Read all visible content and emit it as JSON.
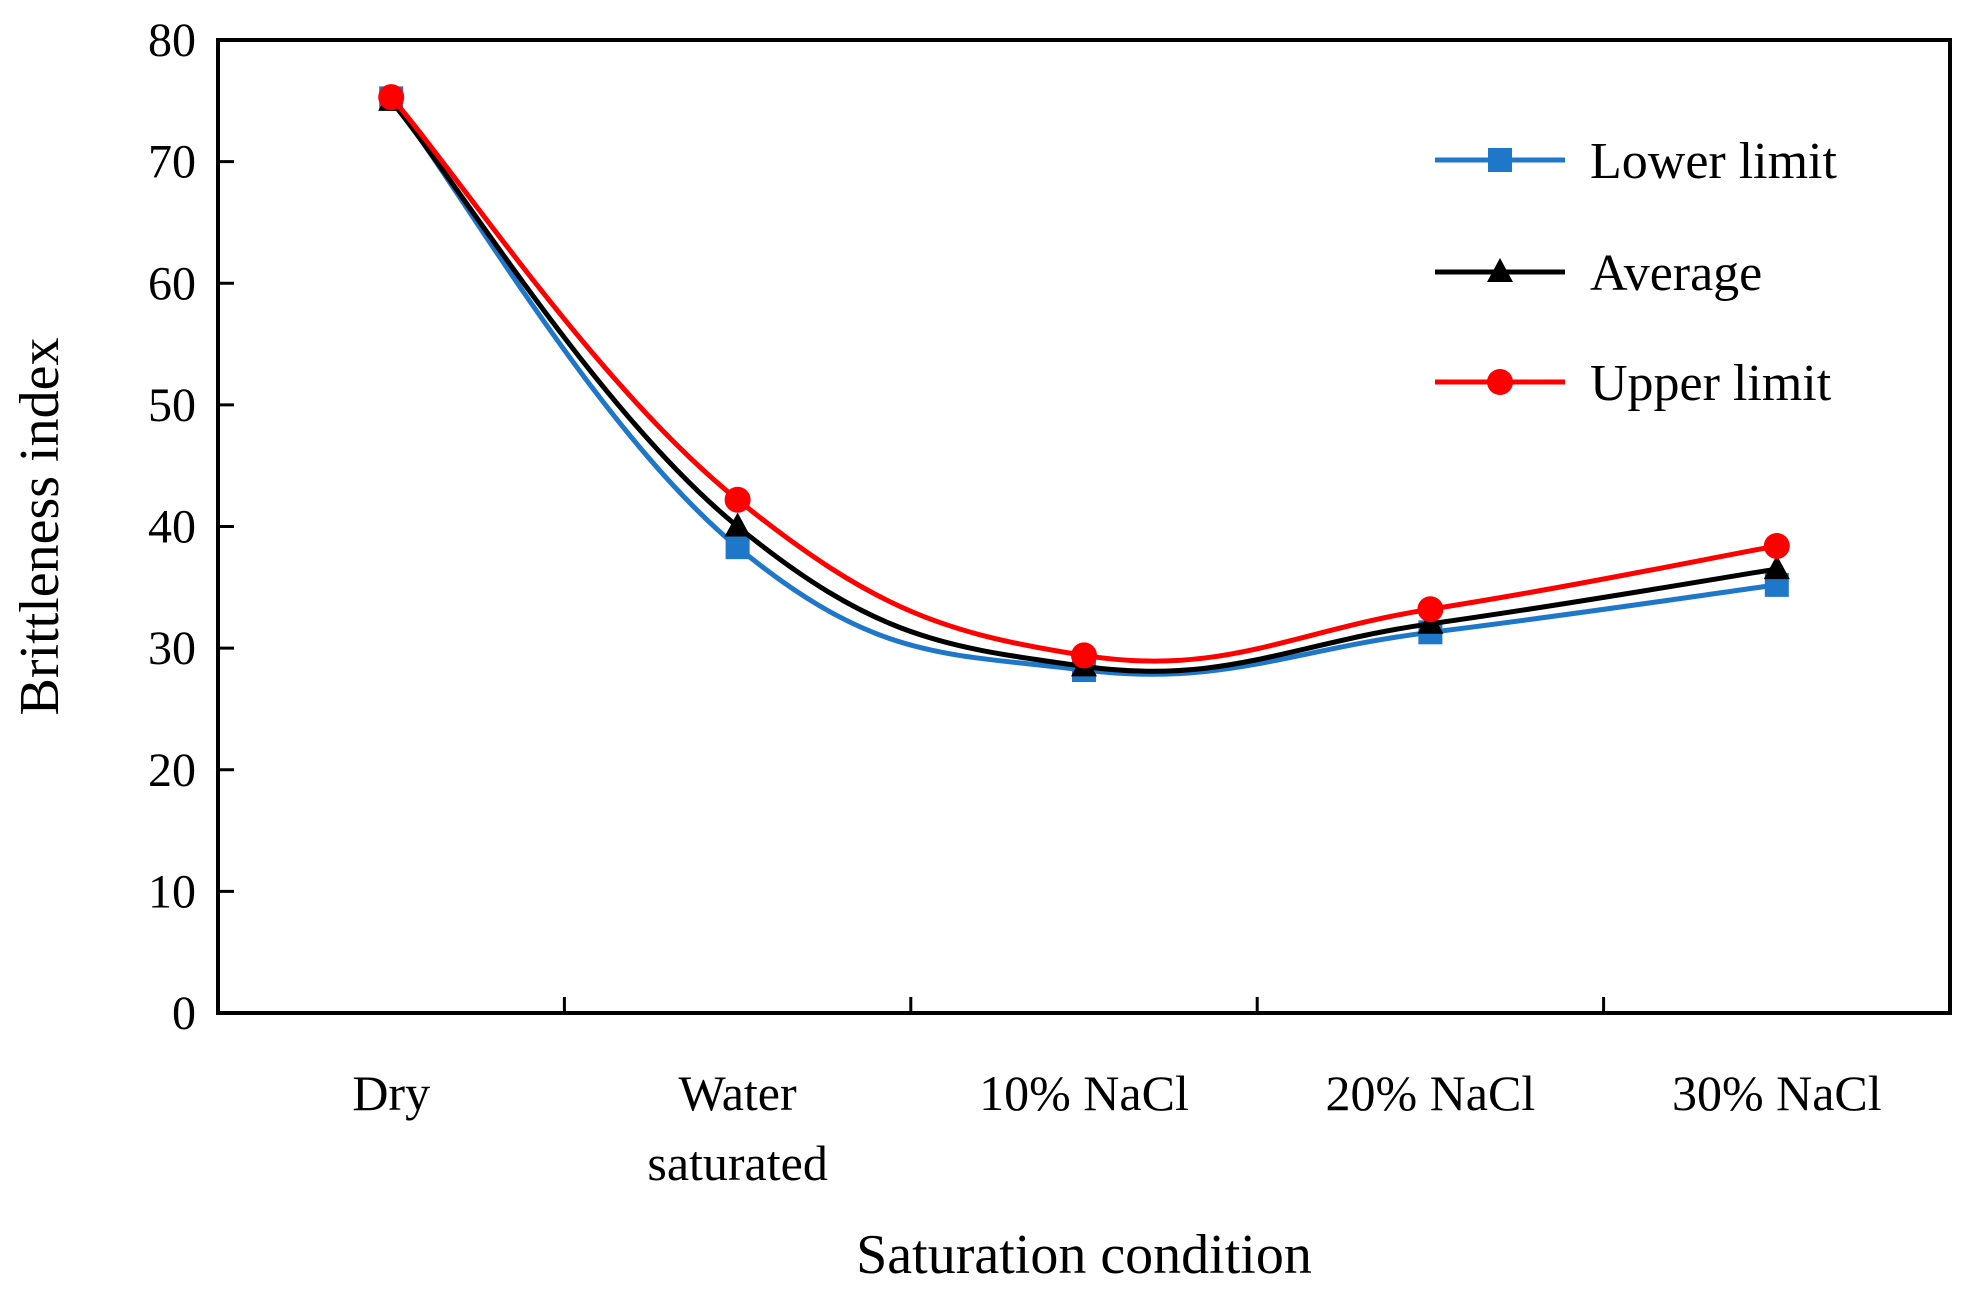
{
  "chart_data": {
    "type": "line",
    "title": "",
    "xlabel": "Saturation condition",
    "ylabel": "Brittleness index",
    "ylim": [
      0,
      80
    ],
    "yticks": [
      0,
      10,
      20,
      30,
      40,
      50,
      60,
      70,
      80
    ],
    "categories": [
      [
        "Dry"
      ],
      [
        "Water",
        "saturated"
      ],
      [
        "10% NaCl"
      ],
      [
        "20% NaCl"
      ],
      [
        "30% NaCl"
      ]
    ],
    "grid": false,
    "legend_position": "top-right",
    "smooth": true,
    "series": [
      {
        "name": "Lower limit",
        "color": "#1F77C9",
        "marker": "square",
        "values": [
          75.2,
          38.3,
          28.2,
          31.3,
          35.2
        ]
      },
      {
        "name": "Average",
        "color": "#000000",
        "marker": "triangle",
        "values": [
          75.0,
          40.0,
          28.5,
          32.0,
          36.5
        ]
      },
      {
        "name": "Upper limit",
        "color": "#FF0000",
        "marker": "circle",
        "values": [
          75.3,
          42.2,
          29.4,
          33.2,
          38.4
        ]
      }
    ]
  }
}
